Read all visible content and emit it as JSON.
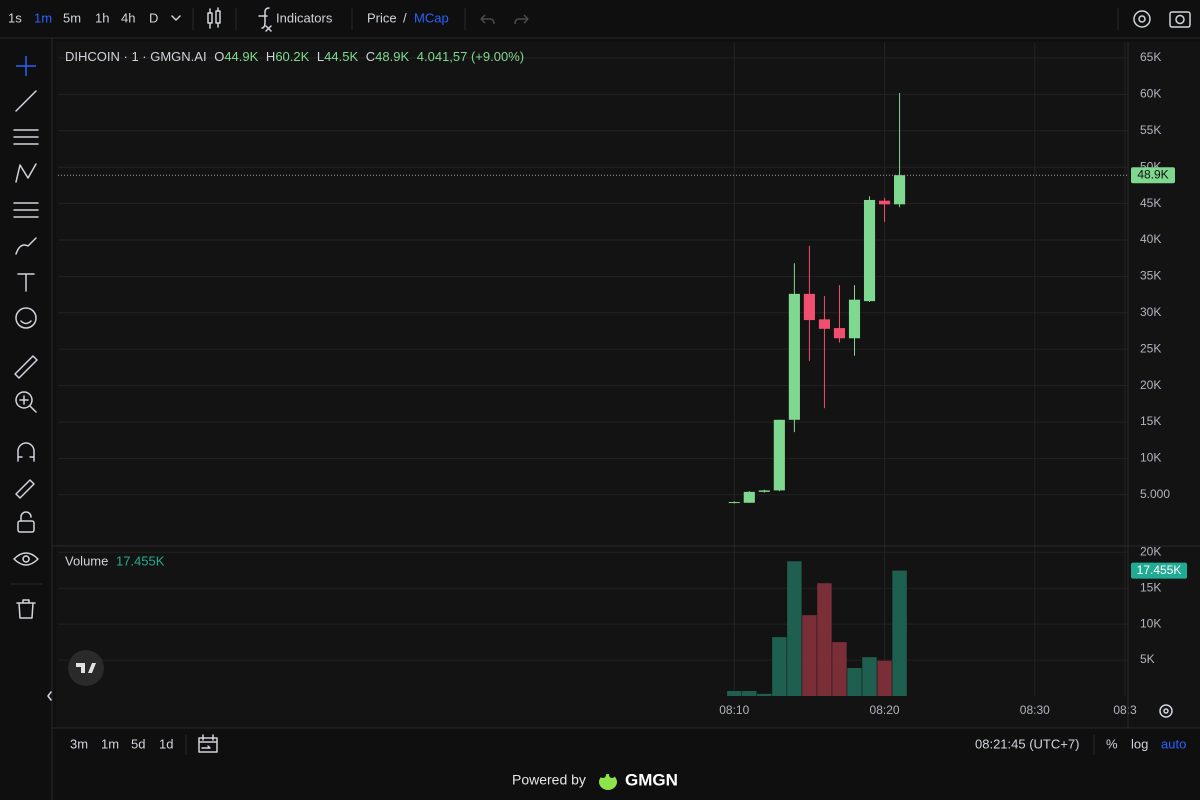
{
  "toolbar": {
    "intervals": [
      "1s",
      "1m",
      "5m",
      "1h",
      "4h",
      "D"
    ],
    "indicators": "Indicators",
    "price": "Price",
    "separator": "/",
    "mcap": "MCap"
  },
  "legend": {
    "symbol": "DIHCOIN · 1 · GMGN.AI",
    "ohlc": [
      {
        "label": "O",
        "value": "44.9K"
      },
      {
        "label": "H",
        "value": "60.2K"
      },
      {
        "label": "L",
        "value": "44.5K"
      },
      {
        "label": "C",
        "value": "48.9K"
      }
    ],
    "change": "4.041,57 (+9.00%)"
  },
  "volume_legend": {
    "label": "Volume",
    "value": "17.455K"
  },
  "bottom_bar": {
    "ranges": [
      "3m",
      "1m",
      "5d",
      "1d"
    ],
    "clock": "08:21:45 (UTC+7)",
    "options": [
      "%",
      "log",
      "auto"
    ]
  },
  "footer": {
    "powered": "Powered by",
    "brand": "GMGN"
  },
  "chart_data": [
    {
      "type": "candlestick",
      "x": [
        10,
        11,
        12,
        13,
        14,
        15,
        16,
        17,
        18,
        19,
        20,
        21
      ],
      "open": [
        3900,
        3900,
        5400,
        5600,
        15300,
        32600,
        29100,
        27900,
        26500,
        31600,
        45400,
        44900
      ],
      "high": [
        4100,
        5500,
        5700,
        15300,
        36800,
        39200,
        32300,
        33800,
        33800,
        46000,
        45800,
        60200
      ],
      "low": [
        3800,
        3900,
        5300,
        5500,
        13600,
        23400,
        16900,
        25900,
        24100,
        31500,
        42500,
        44500
      ],
      "close": [
        4000,
        5400,
        5600,
        15300,
        32600,
        29000,
        27800,
        26500,
        31800,
        45500,
        44900,
        48900
      ],
      "up_color": "#7fd88f",
      "down_color": "#f0506e",
      "xlim": [
        -35,
        36.2
      ],
      "xticks": [
        {
          "value": 10,
          "label": "08:10"
        },
        {
          "value": 20,
          "label": "08:20"
        },
        {
          "value": 30,
          "label": "08:30"
        },
        {
          "value": 36,
          "label": "08:3"
        }
      ],
      "ylim": [
        -1900,
        67200
      ],
      "yticks": [
        {
          "value": 5000,
          "label": "5.000"
        },
        {
          "value": 10000,
          "label": "10K"
        },
        {
          "value": 15000,
          "label": "15K"
        },
        {
          "value": 20000,
          "label": "20K"
        },
        {
          "value": 25000,
          "label": "25K"
        },
        {
          "value": 30000,
          "label": "30K"
        },
        {
          "value": 35000,
          "label": "35K"
        },
        {
          "value": 40000,
          "label": "40K"
        },
        {
          "value": 45000,
          "label": "45K"
        },
        {
          "value": 50000,
          "label": "50K"
        },
        {
          "value": 55000,
          "label": "55K"
        },
        {
          "value": 60000,
          "label": "60K"
        },
        {
          "value": 65000,
          "label": "65K"
        }
      ],
      "grid": true
    },
    {
      "type": "bar",
      "x": [
        10,
        11,
        12,
        13,
        14,
        15,
        16,
        17,
        18,
        19,
        20,
        21
      ],
      "values": [
        700,
        700,
        300,
        8200,
        18750,
        11250,
        15700,
        7500,
        3900,
        5400,
        4900,
        17455
      ],
      "colors": [
        "#1f5f4f",
        "#1f5f4f",
        "#1f5f4f",
        "#1f5f4f",
        "#1f5f4f",
        "#7a2e37",
        "#7a2e37",
        "#7a2e37",
        "#1f5f4f",
        "#1f5f4f",
        "#7a2e37",
        "#1f5f4f"
      ],
      "ylim": [
        0,
        20600
      ],
      "yticks": [
        {
          "value": 5000,
          "label": "5K"
        },
        {
          "value": 10000,
          "label": "10K"
        },
        {
          "value": 15000,
          "label": "15K"
        },
        {
          "value": 20000,
          "label": "20K"
        }
      ],
      "grid": true
    }
  ]
}
